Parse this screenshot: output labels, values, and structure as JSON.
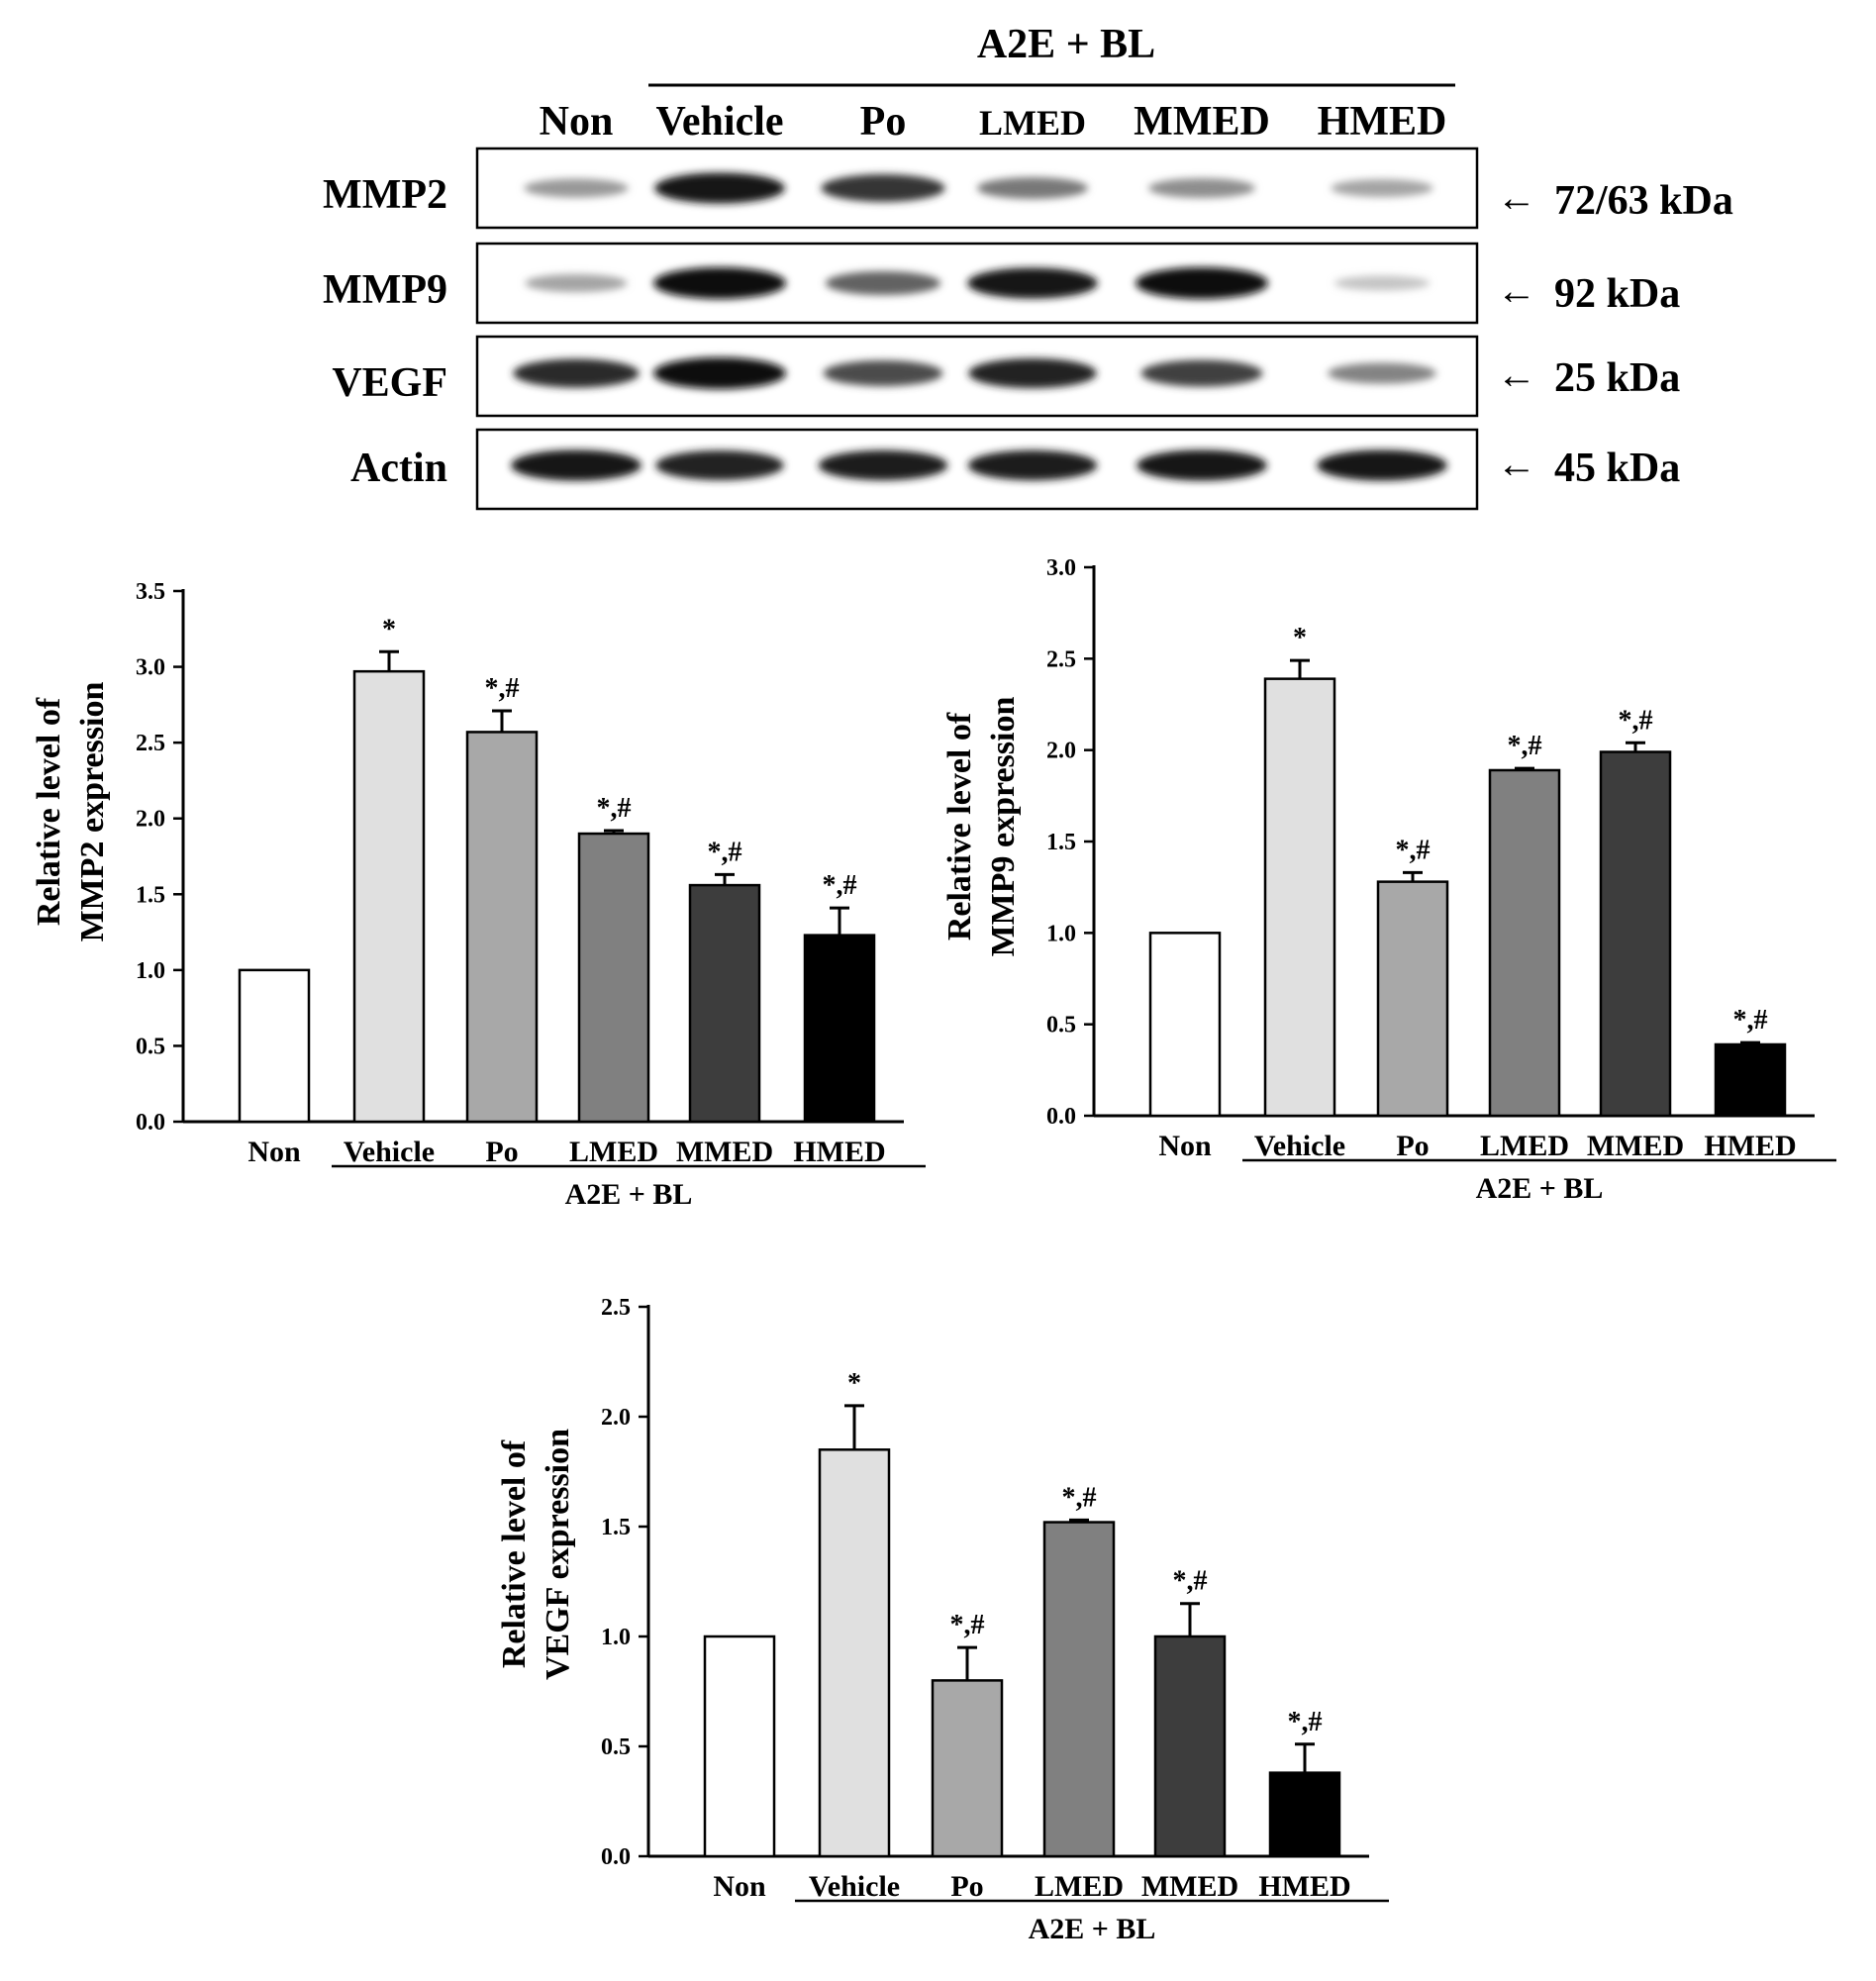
{
  "blot": {
    "group_label": "A2E + BL",
    "lanes": [
      "Non",
      "Vehicle",
      "Po",
      "LMED",
      "MMED",
      "HMED"
    ],
    "rows": [
      {
        "protein": "MMP2",
        "size": "72/63 kDa",
        "band_intensity": [
          0.35,
          0.95,
          0.8,
          0.5,
          0.4,
          0.3
        ]
      },
      {
        "protein": "MMP9",
        "size": "92 kDa",
        "band_intensity": [
          0.3,
          1.0,
          0.6,
          0.95,
          1.0,
          0.15
        ]
      },
      {
        "protein": "VEGF",
        "size": "25 kDa",
        "band_intensity": [
          0.85,
          1.0,
          0.7,
          0.9,
          0.75,
          0.45
        ]
      },
      {
        "protein": "Actin",
        "size": "45 kDa",
        "band_intensity": [
          0.95,
          0.9,
          0.92,
          0.92,
          0.95,
          0.95
        ]
      }
    ]
  },
  "chart_data": [
    {
      "type": "bar",
      "categories": [
        "Non",
        "Vehicle",
        "Po",
        "LMED",
        "MMED",
        "HMED"
      ],
      "group_label": "A2E + BL",
      "values": [
        1.0,
        2.97,
        2.57,
        1.9,
        1.56,
        1.23
      ],
      "errors": [
        0,
        0.13,
        0.14,
        0.02,
        0.07,
        0.18
      ],
      "annotations": [
        "",
        "*",
        "*,#",
        "*,#",
        "*,#",
        "*,#"
      ],
      "bar_colors": [
        "#ffffff",
        "#e0e0e0",
        "#a8a8a8",
        "#808080",
        "#3d3d3d",
        "#000000"
      ],
      "ylabel_line1": "Relative level of",
      "ylabel_line2": "MMP2 expression",
      "yticks": [
        "0.0",
        "0.5",
        "1.0",
        "1.5",
        "2.0",
        "2.5",
        "3.0",
        "3.5"
      ],
      "ylim": [
        0,
        3.5
      ]
    },
    {
      "type": "bar",
      "categories": [
        "Non",
        "Vehicle",
        "Po",
        "LMED",
        "MMED",
        "HMED"
      ],
      "group_label": "A2E + BL",
      "values": [
        1.0,
        2.39,
        1.28,
        1.89,
        1.99,
        0.39
      ],
      "errors": [
        0,
        0.1,
        0.05,
        0.01,
        0.05,
        0.01
      ],
      "annotations": [
        "",
        "*",
        "*,#",
        "*,#",
        "*,#",
        "*,#"
      ],
      "bar_colors": [
        "#ffffff",
        "#e0e0e0",
        "#a8a8a8",
        "#808080",
        "#3d3d3d",
        "#000000"
      ],
      "ylabel_line1": "Relative level of",
      "ylabel_line2": "MMP9 expression",
      "yticks": [
        "0.0",
        "0.5",
        "1.0",
        "1.5",
        "2.0",
        "2.5",
        "3.0"
      ],
      "ylim": [
        0,
        3.0
      ]
    },
    {
      "type": "bar",
      "categories": [
        "Non",
        "Vehicle",
        "Po",
        "LMED",
        "MMED",
        "HMED"
      ],
      "group_label": "A2E + BL",
      "values": [
        1.0,
        1.85,
        0.8,
        1.52,
        1.0,
        0.38
      ],
      "errors": [
        0,
        0.2,
        0.15,
        0.01,
        0.15,
        0.13
      ],
      "annotations": [
        "",
        "*",
        "*,#",
        "*,#",
        "*,#",
        "*,#"
      ],
      "bar_colors": [
        "#ffffff",
        "#e0e0e0",
        "#a8a8a8",
        "#808080",
        "#3d3d3d",
        "#000000"
      ],
      "ylabel_line1": "Relative level of",
      "ylabel_line2": "VEGF expression",
      "yticks": [
        "0.0",
        "0.5",
        "1.0",
        "1.5",
        "2.0",
        "2.5"
      ],
      "ylim": [
        0,
        2.5
      ]
    }
  ]
}
